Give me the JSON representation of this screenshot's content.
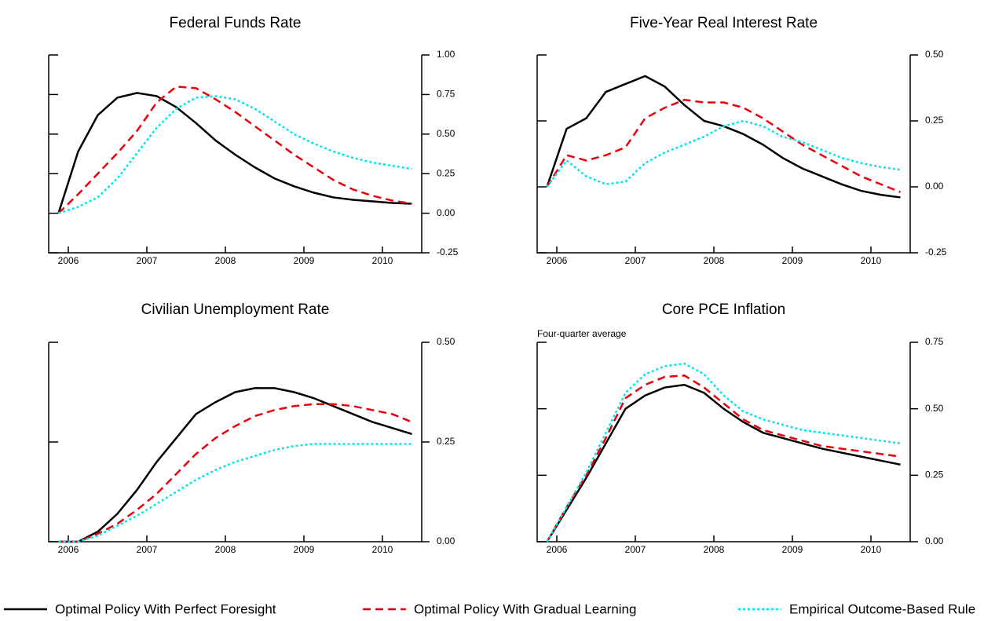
{
  "chart_data": [
    {
      "type": "line",
      "title": "Federal Funds Rate",
      "x": [
        2005.875,
        2006.125,
        2006.375,
        2006.625,
        2006.875,
        2007.125,
        2007.375,
        2007.625,
        2007.875,
        2008.125,
        2008.375,
        2008.625,
        2008.875,
        2009.125,
        2009.375,
        2009.625,
        2009.875,
        2010.125,
        2010.375
      ],
      "xlim": [
        2005.75,
        2010.5
      ],
      "xticks": [
        2006,
        2007,
        2008,
        2009,
        2010
      ],
      "ylim": [
        -0.25,
        1.0
      ],
      "yticks": [
        {
          "value": -0.25,
          "label": "-0.25"
        },
        {
          "value": 0,
          "label": "0.00"
        },
        {
          "value": 0.25,
          "label": "0.25"
        },
        {
          "value": 0.5,
          "label": "0.50"
        },
        {
          "value": 0.75,
          "label": "0.75"
        },
        {
          "value": 1.0,
          "label": "1.00"
        }
      ],
      "series": [
        {
          "name": "Optimal Policy With Perfect Foresight",
          "color": "#000000",
          "style": "solid",
          "values": [
            0,
            0.39,
            0.62,
            0.73,
            0.76,
            0.74,
            0.67,
            0.57,
            0.46,
            0.37,
            0.29,
            0.22,
            0.17,
            0.13,
            0.1,
            0.085,
            0.075,
            0.065,
            0.06
          ]
        },
        {
          "name": "Optimal Policy With Gradual Learning",
          "color": "#e8000b",
          "style": "dashed",
          "values": [
            0,
            0.12,
            0.25,
            0.38,
            0.52,
            0.7,
            0.8,
            0.79,
            0.72,
            0.64,
            0.55,
            0.46,
            0.37,
            0.29,
            0.21,
            0.15,
            0.11,
            0.08,
            0.06
          ]
        },
        {
          "name": "Empirical Outcome-Based Rule",
          "color": "#00e5ee",
          "style": "dotted",
          "values": [
            0,
            0.04,
            0.1,
            0.22,
            0.38,
            0.54,
            0.66,
            0.73,
            0.74,
            0.72,
            0.66,
            0.58,
            0.5,
            0.44,
            0.39,
            0.35,
            0.32,
            0.3,
            0.28
          ]
        }
      ]
    },
    {
      "type": "line",
      "title": "Five-Year Real Interest Rate",
      "x": [
        2005.875,
        2006.125,
        2006.375,
        2006.625,
        2006.875,
        2007.125,
        2007.375,
        2007.625,
        2007.875,
        2008.125,
        2008.375,
        2008.625,
        2008.875,
        2009.125,
        2009.375,
        2009.625,
        2009.875,
        2010.125,
        2010.375
      ],
      "xlim": [
        2005.75,
        2010.5
      ],
      "xticks": [
        2006,
        2007,
        2008,
        2009,
        2010
      ],
      "ylim": [
        -0.25,
        0.5
      ],
      "yticks": [
        {
          "value": -0.25,
          "label": "-0.25"
        },
        {
          "value": 0,
          "label": "0.00"
        },
        {
          "value": 0.25,
          "label": "0.25"
        },
        {
          "value": 0.5,
          "label": "0.50"
        }
      ],
      "series": [
        {
          "name": "Optimal Policy With Perfect Foresight",
          "color": "#000000",
          "style": "solid",
          "values": [
            0,
            0.22,
            0.26,
            0.36,
            0.39,
            0.42,
            0.38,
            0.31,
            0.25,
            0.23,
            0.2,
            0.16,
            0.11,
            0.07,
            0.04,
            0.01,
            -0.015,
            -0.03,
            -0.04
          ]
        },
        {
          "name": "Optimal Policy With Gradual Learning",
          "color": "#e8000b",
          "style": "dashed",
          "values": [
            0,
            0.12,
            0.1,
            0.12,
            0.15,
            0.26,
            0.3,
            0.33,
            0.32,
            0.32,
            0.3,
            0.26,
            0.21,
            0.16,
            0.12,
            0.08,
            0.04,
            0.01,
            -0.02
          ]
        },
        {
          "name": "Empirical Outcome-Based Rule",
          "color": "#00e5ee",
          "style": "dotted",
          "values": [
            0,
            0.1,
            0.04,
            0.01,
            0.02,
            0.09,
            0.13,
            0.16,
            0.19,
            0.23,
            0.25,
            0.23,
            0.19,
            0.17,
            0.14,
            0.11,
            0.09,
            0.075,
            0.065
          ]
        }
      ]
    },
    {
      "type": "line",
      "title": "Civilian Unemployment Rate",
      "x": [
        2005.875,
        2006.125,
        2006.375,
        2006.625,
        2006.875,
        2007.125,
        2007.375,
        2007.625,
        2007.875,
        2008.125,
        2008.375,
        2008.625,
        2008.875,
        2009.125,
        2009.375,
        2009.625,
        2009.875,
        2010.125,
        2010.375
      ],
      "xlim": [
        2005.75,
        2010.5
      ],
      "xticks": [
        2006,
        2007,
        2008,
        2009,
        2010
      ],
      "ylim": [
        0,
        0.5
      ],
      "yticks": [
        {
          "value": 0,
          "label": "0.00"
        },
        {
          "value": 0.25,
          "label": "0.25"
        },
        {
          "value": 0.5,
          "label": "0.50"
        }
      ],
      "series": [
        {
          "name": "Optimal Policy With Perfect Foresight",
          "color": "#000000",
          "style": "solid",
          "values": [
            0,
            0.0,
            0.025,
            0.07,
            0.13,
            0.2,
            0.26,
            0.32,
            0.35,
            0.375,
            0.385,
            0.385,
            0.375,
            0.36,
            0.34,
            0.32,
            0.3,
            0.285,
            0.27
          ]
        },
        {
          "name": "Optimal Policy With Gradual Learning",
          "color": "#e8000b",
          "style": "dashed",
          "values": [
            0,
            0,
            0.02,
            0.045,
            0.08,
            0.12,
            0.17,
            0.22,
            0.26,
            0.29,
            0.315,
            0.33,
            0.34,
            0.345,
            0.345,
            0.34,
            0.33,
            0.32,
            0.3
          ]
        },
        {
          "name": "Empirical Outcome-Based Rule",
          "color": "#00e5ee",
          "style": "dotted",
          "values": [
            0,
            0,
            0.015,
            0.04,
            0.065,
            0.095,
            0.125,
            0.155,
            0.18,
            0.2,
            0.215,
            0.23,
            0.24,
            0.245,
            0.245,
            0.245,
            0.245,
            0.245,
            0.245
          ]
        }
      ]
    },
    {
      "type": "line",
      "title": "Core PCE Inflation",
      "annotation": "Four-quarter average",
      "x": [
        2005.875,
        2006.125,
        2006.375,
        2006.625,
        2006.875,
        2007.125,
        2007.375,
        2007.625,
        2007.875,
        2008.125,
        2008.375,
        2008.625,
        2008.875,
        2009.125,
        2009.375,
        2009.625,
        2009.875,
        2010.125,
        2010.375
      ],
      "xlim": [
        2005.75,
        2010.5
      ],
      "xticks": [
        2006,
        2007,
        2008,
        2009,
        2010
      ],
      "ylim": [
        0,
        0.75
      ],
      "yticks": [
        {
          "value": 0,
          "label": "0.00"
        },
        {
          "value": 0.25,
          "label": "0.25"
        },
        {
          "value": 0.5,
          "label": "0.50"
        },
        {
          "value": 0.75,
          "label": "0.75"
        }
      ],
      "series": [
        {
          "name": "Optimal Policy With Perfect Foresight",
          "color": "#000000",
          "style": "solid",
          "values": [
            0,
            0.12,
            0.24,
            0.37,
            0.5,
            0.55,
            0.58,
            0.59,
            0.56,
            0.5,
            0.45,
            0.41,
            0.39,
            0.37,
            0.35,
            0.335,
            0.32,
            0.305,
            0.29
          ]
        },
        {
          "name": "Optimal Policy With Gradual Learning",
          "color": "#e8000b",
          "style": "dashed",
          "values": [
            0,
            0.13,
            0.25,
            0.39,
            0.54,
            0.59,
            0.62,
            0.625,
            0.58,
            0.52,
            0.46,
            0.42,
            0.4,
            0.38,
            0.36,
            0.35,
            0.34,
            0.33,
            0.32
          ]
        },
        {
          "name": "Empirical Outcome-Based Rule",
          "color": "#00e5ee",
          "style": "dotted",
          "values": [
            0,
            0.13,
            0.26,
            0.41,
            0.56,
            0.63,
            0.66,
            0.67,
            0.63,
            0.55,
            0.49,
            0.46,
            0.44,
            0.42,
            0.41,
            0.4,
            0.39,
            0.38,
            0.37
          ]
        }
      ]
    }
  ]
}
